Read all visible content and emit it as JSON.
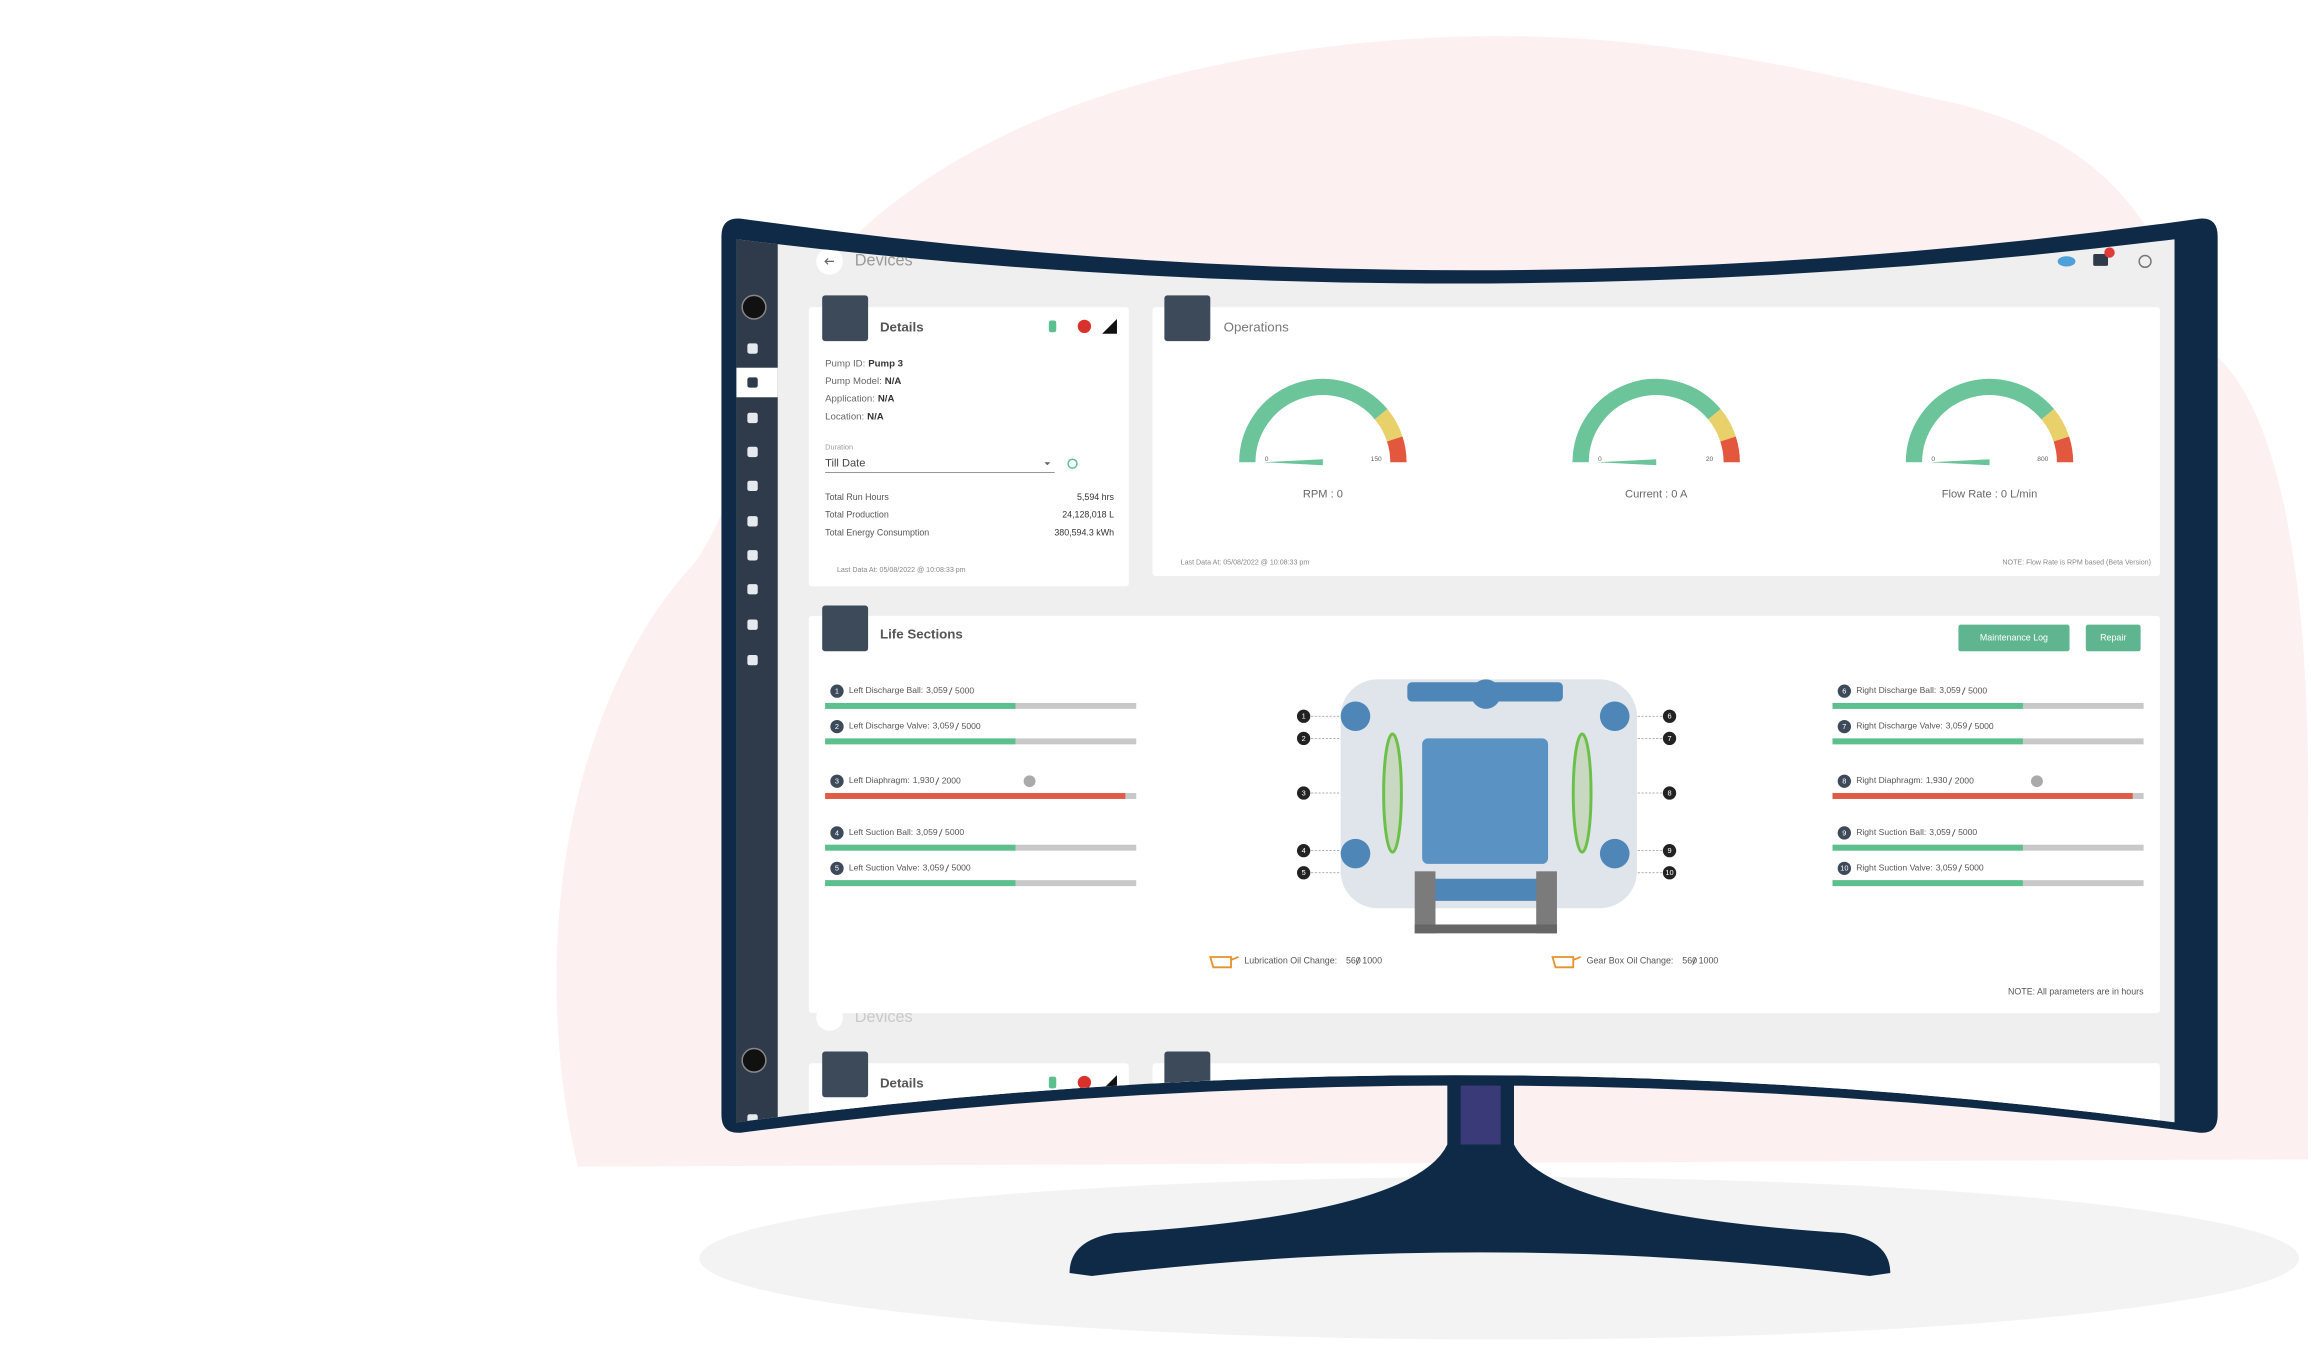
{
  "header": {
    "title": "Devices"
  },
  "details": {
    "title": "Details",
    "fields": [
      {
        "label": "Pump ID:",
        "value": "Pump 3"
      },
      {
        "label": "Pump Model:",
        "value": "N/A"
      },
      {
        "label": "Application:",
        "value": "N/A"
      },
      {
        "label": "Location:",
        "value": "N/A"
      }
    ],
    "duration_label": "Duration",
    "duration": "Till Date",
    "totals": [
      {
        "label": "Total Run Hours",
        "value": "5,594 hrs"
      },
      {
        "label": "Total Production",
        "value": "24,128,018 L"
      },
      {
        "label": "Total Energy Consumption",
        "value": "380,594.3 kWh"
      }
    ],
    "last_data": "Last Data At: 05/08/2022 @ 10:08:33 pm"
  },
  "operations": {
    "title": "Operations",
    "gauges": [
      {
        "label": "RPM : 0",
        "value": 0,
        "min": 0,
        "max": 150
      },
      {
        "label": "Current : 0 A",
        "value": 0,
        "min": 0,
        "max": 20
      },
      {
        "label": "Flow Rate : 0 L/min",
        "value": 0,
        "min": 0,
        "max": 800
      }
    ],
    "last_data": "Last Data At: 05/08/2022 @ 10:08:33 pm",
    "note": "NOTE: Flow Rate is RPM based (Beta Version)"
  },
  "life_sections": {
    "title": "Life Sections",
    "buttons": [
      "Maintenance Log",
      "Repair"
    ],
    "items": [
      {
        "number": 1,
        "name": "Left Discharge Ball:",
        "used": {
          "value": 3059,
          "label": "3,059"
        },
        "limit": 5000,
        "color": "#5cbf8e",
        "checked": false
      },
      {
        "number": 2,
        "name": "Left Discharge Valve:",
        "used": {
          "value": 3059,
          "label": "3,059"
        },
        "limit": 5000,
        "color": "#5cbf8e",
        "checked": false
      },
      {
        "number": 3,
        "name": "Left Diaphragm:",
        "used": {
          "value": 1930,
          "label": "1,930"
        },
        "limit": 2000,
        "color": "#e05a45",
        "checked": true
      },
      {
        "number": 4,
        "name": "Left Suction Ball:",
        "used": {
          "value": 3059,
          "label": "3,059"
        },
        "limit": 5000,
        "color": "#5cbf8e",
        "checked": false
      },
      {
        "number": 5,
        "name": "Left Suction Valve:",
        "used": {
          "value": 3059,
          "label": "3,059"
        },
        "limit": 5000,
        "color": "#5cbf8e",
        "checked": false
      },
      {
        "number": 6,
        "name": "Right Discharge Ball:",
        "used": {
          "value": 3059,
          "label": "3,059"
        },
        "limit": 5000,
        "color": "#5cbf8e",
        "checked": false
      },
      {
        "number": 7,
        "name": "Right Discharge Valve:",
        "used": {
          "value": 3059,
          "label": "3,059"
        },
        "limit": 5000,
        "color": "#5cbf8e",
        "checked": false
      },
      {
        "number": 8,
        "name": "Right Diaphragm:",
        "used": {
          "value": 1930,
          "label": "1,930"
        },
        "limit": 2000,
        "color": "#e05a45",
        "checked": true
      },
      {
        "number": 9,
        "name": "Right Suction Ball:",
        "used": {
          "value": 3059,
          "label": "3,059"
        },
        "limit": 5000,
        "color": "#5cbf8e",
        "checked": false
      },
      {
        "number": 10,
        "name": "Right Suction Valve:",
        "used": {
          "value": 3059,
          "label": "3,059"
        },
        "limit": 5000,
        "color": "#5cbf8e",
        "checked": false
      }
    ],
    "oil": [
      {
        "name": "Lubrication Oil Change:",
        "used": 560,
        "limit": 1000
      },
      {
        "name": "Gear Box Oil Change:",
        "used": 560,
        "limit": 1000
      }
    ],
    "note": "NOTE: All parameters are in hours"
  }
}
